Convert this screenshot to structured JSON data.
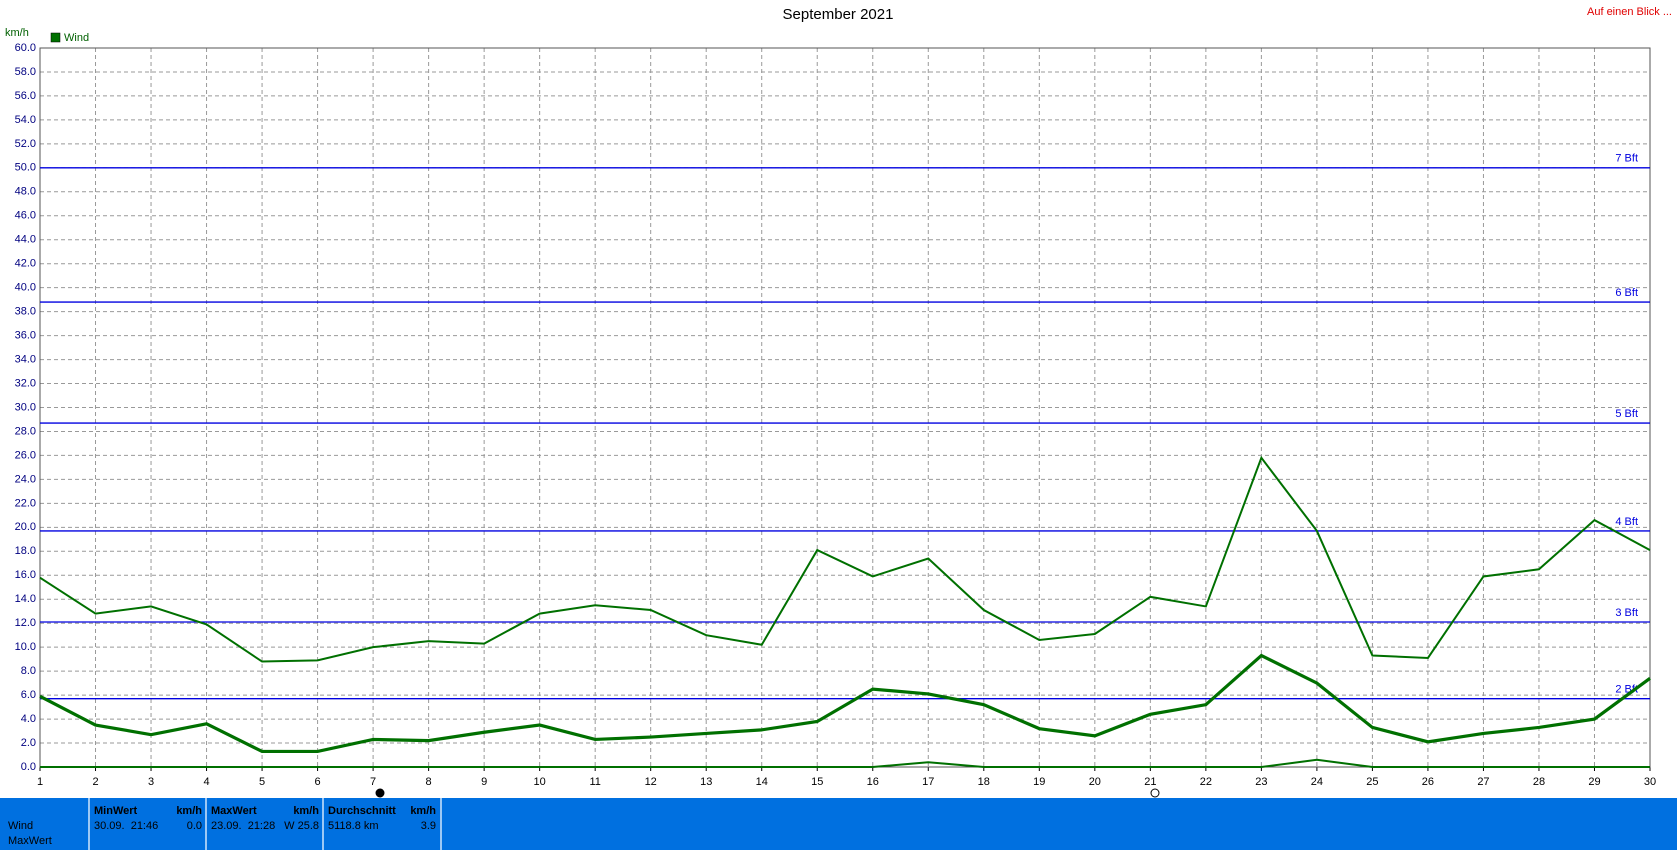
{
  "chart_data": {
    "type": "line",
    "title": "September 2021",
    "y_unit": "km/h",
    "corner_link": "Auf einen Blick ...",
    "legend": {
      "label": "Wind",
      "color": "#007000"
    },
    "x": [
      1,
      2,
      3,
      4,
      5,
      6,
      7,
      8,
      9,
      10,
      11,
      12,
      13,
      14,
      15,
      16,
      17,
      18,
      19,
      20,
      21,
      22,
      23,
      24,
      25,
      26,
      27,
      28,
      29,
      30
    ],
    "xlim": [
      1,
      30
    ],
    "xticks": [
      1,
      2,
      3,
      4,
      5,
      6,
      7,
      8,
      9,
      10,
      11,
      12,
      13,
      14,
      15,
      16,
      17,
      18,
      19,
      20,
      21,
      22,
      23,
      24,
      25,
      26,
      27,
      28,
      29,
      30
    ],
    "ylim": [
      0,
      60
    ],
    "yticks": [
      {
        "value": 0,
        "label": "0.0"
      },
      {
        "value": 2,
        "label": "2.0"
      },
      {
        "value": 4,
        "label": "4.0"
      },
      {
        "value": 6,
        "label": "6.0"
      },
      {
        "value": 8,
        "label": "8.0"
      },
      {
        "value": 10,
        "label": "10.0"
      },
      {
        "value": 12,
        "label": "12.0"
      },
      {
        "value": 14,
        "label": "14.0"
      },
      {
        "value": 16,
        "label": "16.0"
      },
      {
        "value": 18,
        "label": "18.0"
      },
      {
        "value": 20,
        "label": "20.0"
      },
      {
        "value": 22,
        "label": "22.0"
      },
      {
        "value": 24,
        "label": "24.0"
      },
      {
        "value": 26,
        "label": "26.0"
      },
      {
        "value": 28,
        "label": "28.0"
      },
      {
        "value": 30,
        "label": "30.0"
      },
      {
        "value": 32,
        "label": "32.0"
      },
      {
        "value": 34,
        "label": "34.0"
      },
      {
        "value": 36,
        "label": "36.0"
      },
      {
        "value": 38,
        "label": "38.0"
      },
      {
        "value": 40,
        "label": "40.0"
      },
      {
        "value": 42,
        "label": "42.0"
      },
      {
        "value": 44,
        "label": "44.0"
      },
      {
        "value": 46,
        "label": "46.0"
      },
      {
        "value": 48,
        "label": "48.0"
      },
      {
        "value": 50,
        "label": "50.0"
      },
      {
        "value": 52,
        "label": "52.0"
      },
      {
        "value": 54,
        "label": "54.0"
      },
      {
        "value": 56,
        "label": "56.0"
      },
      {
        "value": 58,
        "label": "58.0"
      },
      {
        "value": 60,
        "label": "60.0"
      }
    ],
    "grid": true,
    "reference_lines": [
      {
        "value": 5.7,
        "label": "2 Bft"
      },
      {
        "value": 12.1,
        "label": "3 Bft"
      },
      {
        "value": 19.7,
        "label": "4 Bft"
      },
      {
        "value": 28.7,
        "label": "5 Bft"
      },
      {
        "value": 38.8,
        "label": "6 Bft"
      },
      {
        "value": 50.0,
        "label": "7 Bft"
      }
    ],
    "reference_color": "#0000e0",
    "series": [
      {
        "color": "#007000",
        "line_width": 2,
        "values": [
          15.8,
          12.8,
          13.4,
          11.9,
          8.8,
          8.9,
          10.0,
          10.5,
          10.3,
          12.8,
          13.5,
          13.1,
          11.0,
          10.2,
          18.1,
          15.9,
          17.4,
          13.1,
          10.6,
          11.1,
          14.2,
          13.4,
          25.8,
          19.7,
          9.3,
          9.1,
          15.9,
          16.5,
          20.6,
          18.1
        ]
      },
      {
        "color": "#007000",
        "line_width": 3.2,
        "values": [
          5.9,
          3.5,
          2.7,
          3.6,
          1.3,
          1.3,
          2.3,
          2.2,
          2.9,
          3.5,
          2.3,
          2.5,
          2.8,
          3.1,
          3.8,
          6.5,
          6.1,
          5.2,
          3.2,
          2.6,
          4.4,
          5.2,
          9.3,
          7.0,
          3.3,
          2.1,
          2.8,
          3.3,
          4.0,
          7.4
        ]
      },
      {
        "color": "#007000",
        "line_width": 2,
        "values": [
          0,
          0,
          0,
          0,
          0,
          0,
          0,
          0,
          0,
          0,
          0,
          0,
          0,
          0,
          0,
          0,
          0.4,
          0,
          0,
          0,
          0,
          0,
          0,
          0.6,
          0,
          0,
          0,
          0,
          0,
          0
        ]
      }
    ]
  },
  "summary": {
    "row_labels": [
      "Wind",
      "MaxWert"
    ],
    "columns": [
      {
        "header": "MinWert",
        "unit": "km/h",
        "time": "30.09.  21:46",
        "value": "0.0"
      },
      {
        "header": "MaxWert",
        "unit": "km/h",
        "time": "23.09.  21:28",
        "value": "W 25.8"
      },
      {
        "header": "Durchschnitt",
        "unit": "km/h",
        "time": "5118.8 km",
        "value": "3.9"
      }
    ]
  }
}
